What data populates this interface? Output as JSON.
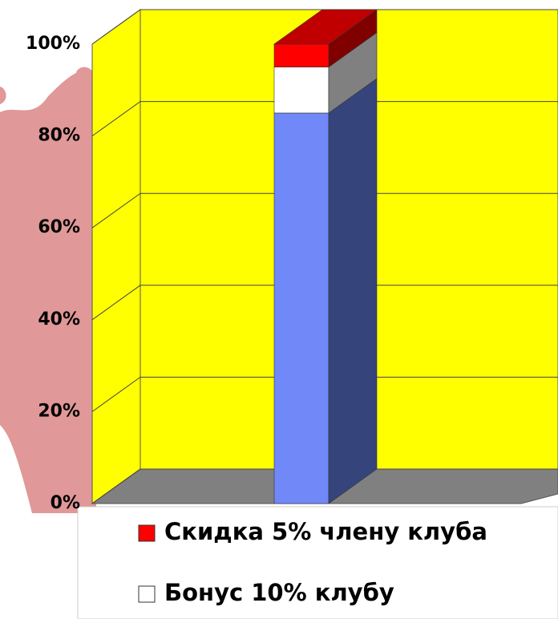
{
  "chart_data": {
    "type": "bar3d_stacked",
    "series": [
      {
        "color": "#7088f8",
        "side": "#36447c",
        "values": [
          85
        ]
      },
      {
        "name": "Бонус 10% клубу",
        "color": "#ffffff",
        "side": "#808080",
        "values": [
          10
        ]
      },
      {
        "name": "Скидка 5% члену клуба",
        "color": "#ff0000",
        "side": "#800000",
        "values": [
          5
        ]
      }
    ],
    "ylim": [
      0,
      100
    ],
    "yticks": [
      {
        "value": 0,
        "label": "0%"
      },
      {
        "value": 20,
        "label": "20%"
      },
      {
        "value": 40,
        "label": "40%"
      },
      {
        "value": 60,
        "label": "60%"
      },
      {
        "value": 80,
        "label": "80%"
      },
      {
        "value": 100,
        "label": "100%"
      }
    ],
    "grid": true
  }
}
